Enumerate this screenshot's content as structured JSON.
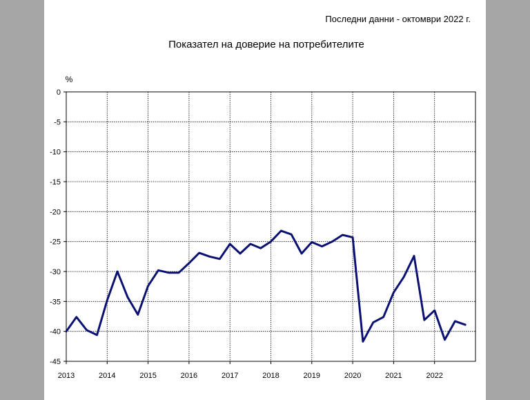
{
  "header": {
    "note": "Последни данни - октомври 2022 г."
  },
  "chart_data": {
    "type": "line",
    "title": "Показател на доверие на потребителите",
    "ylabel": "%",
    "xlabel": "",
    "ylim": [
      -45,
      0
    ],
    "yticks": [
      0,
      -5,
      -10,
      -15,
      -20,
      -25,
      -30,
      -35,
      -40,
      -45
    ],
    "xticks": [
      "2013",
      "2014",
      "2015",
      "2016",
      "2017",
      "2018",
      "2019",
      "2020",
      "2021",
      "2022"
    ],
    "grid": true,
    "series": [
      {
        "color": "#0a1172",
        "points": [
          {
            "t": "2013-01",
            "y": -40.0
          },
          {
            "t": "2013-04",
            "y": -37.6
          },
          {
            "t": "2013-07",
            "y": -39.8
          },
          {
            "t": "2013-10",
            "y": -40.6
          },
          {
            "t": "2014-01",
            "y": -34.8
          },
          {
            "t": "2014-04",
            "y": -30.0
          },
          {
            "t": "2014-07",
            "y": -34.3
          },
          {
            "t": "2014-10",
            "y": -37.2
          },
          {
            "t": "2015-01",
            "y": -32.4
          },
          {
            "t": "2015-04",
            "y": -29.8
          },
          {
            "t": "2015-07",
            "y": -30.2
          },
          {
            "t": "2015-10",
            "y": -30.2
          },
          {
            "t": "2016-01",
            "y": -28.6
          },
          {
            "t": "2016-04",
            "y": -26.9
          },
          {
            "t": "2016-07",
            "y": -27.5
          },
          {
            "t": "2016-10",
            "y": -27.9
          },
          {
            "t": "2017-01",
            "y": -25.4
          },
          {
            "t": "2017-04",
            "y": -27.0
          },
          {
            "t": "2017-07",
            "y": -25.4
          },
          {
            "t": "2017-10",
            "y": -26.1
          },
          {
            "t": "2018-01",
            "y": -25.0
          },
          {
            "t": "2018-04",
            "y": -23.2
          },
          {
            "t": "2018-07",
            "y": -23.8
          },
          {
            "t": "2018-10",
            "y": -27.0
          },
          {
            "t": "2019-01",
            "y": -25.1
          },
          {
            "t": "2019-04",
            "y": -25.8
          },
          {
            "t": "2019-07",
            "y": -25.0
          },
          {
            "t": "2019-10",
            "y": -23.9
          },
          {
            "t": "2020-01",
            "y": -24.3
          },
          {
            "t": "2020-04",
            "y": -41.7
          },
          {
            "t": "2020-07",
            "y": -38.5
          },
          {
            "t": "2020-10",
            "y": -37.6
          },
          {
            "t": "2021-01",
            "y": -33.5
          },
          {
            "t": "2021-04",
            "y": -30.9
          },
          {
            "t": "2021-07",
            "y": -27.4
          },
          {
            "t": "2021-10",
            "y": -38.1
          },
          {
            "t": "2022-01",
            "y": -36.5
          },
          {
            "t": "2022-04",
            "y": -41.4
          },
          {
            "t": "2022-07",
            "y": -38.3
          },
          {
            "t": "2022-10",
            "y": -38.9
          }
        ]
      }
    ]
  }
}
